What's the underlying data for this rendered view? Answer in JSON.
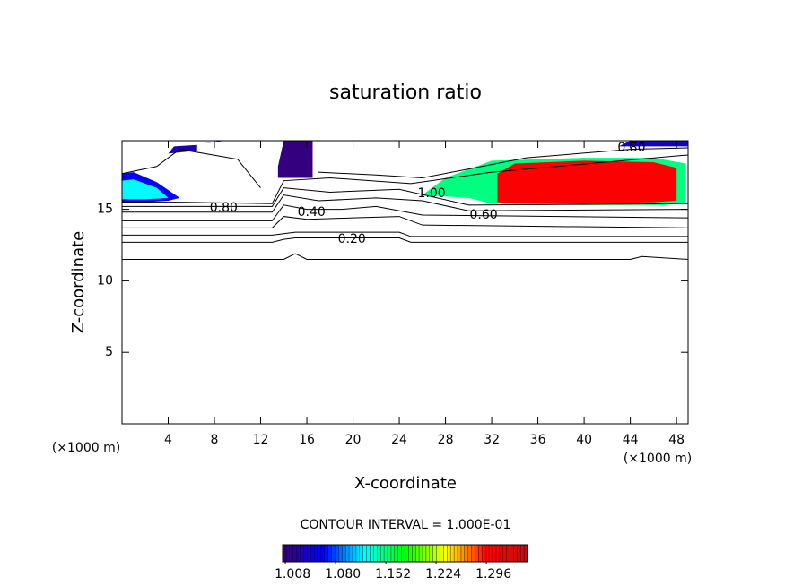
{
  "chart_data": {
    "type": "contour",
    "title": "saturation ratio",
    "xlabel": "X-coordinate",
    "ylabel": "Z-coordinate",
    "x_unit": "(×1000 m)",
    "y_unit": "(×1000 m)",
    "xlim": [
      0,
      49
    ],
    "ylim": [
      0,
      19.8
    ],
    "xticks": [
      4,
      8,
      12,
      16,
      20,
      24,
      28,
      32,
      36,
      40,
      44,
      48
    ],
    "yticks": [
      5,
      10,
      15
    ],
    "contour_interval_text": "CONTOUR INTERVAL = 1.000E-01",
    "line_color": "#000000",
    "contours": [
      {
        "level": 0.1,
        "x": [
          0,
          14,
          15,
          16,
          44,
          45,
          49
        ],
        "y": [
          11.5,
          11.5,
          11.9,
          11.5,
          11.5,
          11.7,
          11.5
        ]
      },
      {
        "level": 0.2,
        "x": [
          0,
          13,
          14,
          15,
          20,
          24,
          25,
          49
        ],
        "y": [
          12.7,
          12.7,
          12.9,
          13.0,
          13.0,
          13.0,
          12.7,
          12.7
        ]
      },
      {
        "level": 0.3,
        "x": [
          0,
          13,
          15,
          24,
          25,
          49
        ],
        "y": [
          13.2,
          13.2,
          13.4,
          13.4,
          13.1,
          13.1
        ]
      },
      {
        "level": 0.4,
        "x": [
          0,
          13,
          14,
          16,
          20,
          24,
          26,
          49
        ],
        "y": [
          13.7,
          13.7,
          14.5,
          14.3,
          14.4,
          14.5,
          13.9,
          13.7
        ]
      },
      {
        "level": 0.5,
        "x": [
          0,
          13,
          14,
          16,
          19,
          22,
          26,
          49
        ],
        "y": [
          14.2,
          14.2,
          15.3,
          15.0,
          15.0,
          15.2,
          14.6,
          14.4
        ]
      },
      {
        "level": 0.6,
        "x": [
          0,
          13,
          14,
          17,
          22,
          26,
          30,
          49
        ],
        "y": [
          14.8,
          14.8,
          16.0,
          15.6,
          15.8,
          15.6,
          14.9,
          15.0
        ]
      },
      {
        "level": 0.7,
        "x": [
          0,
          5,
          13,
          14,
          18,
          24,
          30,
          49
        ],
        "y": [
          15.2,
          15.2,
          15.2,
          16.5,
          16.2,
          16.4,
          15.3,
          15.4
        ]
      },
      {
        "level": 0.8,
        "x": [
          0,
          5,
          13,
          14,
          18,
          25,
          32,
          49
        ],
        "y": [
          15.5,
          15.5,
          15.4,
          17.0,
          17.2,
          16.8,
          17.6,
          18.8
        ]
      },
      {
        "level": 0.8,
        "x": [
          12,
          10,
          5,
          3,
          0
        ],
        "y": [
          16.5,
          18.5,
          19.2,
          18.0,
          17.5
        ]
      },
      {
        "level": 0.9,
        "x": [
          17,
          22,
          26,
          35,
          44,
          49
        ],
        "y": [
          17.6,
          17.4,
          17.2,
          18.6,
          19.2,
          19.3
        ]
      }
    ],
    "contour_labels": [
      {
        "value": 0.8,
        "label": "0.80",
        "x": 8.8,
        "y": 15.1
      },
      {
        "value": 0.4,
        "label": "0.40",
        "x": 16.4,
        "y": 14.8
      },
      {
        "value": 0.2,
        "label": "0.20",
        "x": 19.9,
        "y": 12.9
      },
      {
        "value": 0.6,
        "label": "0.60",
        "x": 31.3,
        "y": 14.6
      },
      {
        "value": 1.0,
        "label": "1.00",
        "x": 26.8,
        "y": 16.1
      },
      {
        "value": 0.8,
        "label": "0.80",
        "x": 44.1,
        "y": 19.3
      }
    ],
    "filled_regions": [
      {
        "value": 1.15,
        "x": [
          26,
          30,
          32,
          40,
          47,
          48.8,
          48.8,
          46,
          40,
          32,
          28
        ],
        "y": [
          16.0,
          15.8,
          15.4,
          15.3,
          15.3,
          15.5,
          18.2,
          18.6,
          18.6,
          18.4,
          17.2
        ]
      },
      {
        "value": 1.3,
        "x": [
          32.5,
          34,
          40,
          46,
          48,
          48,
          46,
          40,
          34,
          32.5
        ],
        "y": [
          15.5,
          15.4,
          15.4,
          15.5,
          15.6,
          17.9,
          18.3,
          18.4,
          18.2,
          17.5
        ]
      },
      {
        "value": 1.06,
        "x": [
          0,
          2,
          4,
          5,
          3,
          1,
          0
        ],
        "y": [
          15.5,
          15.5,
          15.6,
          15.8,
          16.9,
          17.6,
          17.5
        ]
      },
      {
        "value": 1.12,
        "x": [
          0,
          2,
          4,
          3,
          1,
          0
        ],
        "y": [
          15.7,
          15.7,
          15.8,
          16.5,
          17.1,
          17.0
        ]
      },
      {
        "value": 1.01,
        "x": [
          13.5,
          16.5,
          16.5,
          14,
          13.5
        ],
        "y": [
          17.2,
          17.2,
          19.8,
          19.8,
          18.0
        ]
      },
      {
        "value": 1.04,
        "x": [
          43,
          49,
          49,
          44
        ],
        "y": [
          19.4,
          19.4,
          19.8,
          19.8
        ]
      },
      {
        "value": 1.03,
        "x": [
          4,
          6.5,
          6.5,
          4.5
        ],
        "y": [
          18.9,
          19.1,
          19.5,
          19.4
        ]
      },
      {
        "value": 1.03,
        "x": [
          7,
          9,
          8.5
        ],
        "y": [
          19.6,
          19.8,
          19.8
        ]
      }
    ],
    "clim": [
      1.004,
      1.355
    ],
    "colormap": [
      "#3a0070",
      "#0000ff",
      "#00ffff",
      "#00ff00",
      "#ffff00",
      "#ff0000",
      "#c01010"
    ],
    "colorbar_ticks": [
      {
        "value": 1.008,
        "label": "1.008"
      },
      {
        "value": 1.08,
        "label": "1.080"
      },
      {
        "value": 1.152,
        "label": "1.152"
      },
      {
        "value": 1.224,
        "label": "1.224"
      },
      {
        "value": 1.296,
        "label": "1.296"
      }
    ]
  }
}
